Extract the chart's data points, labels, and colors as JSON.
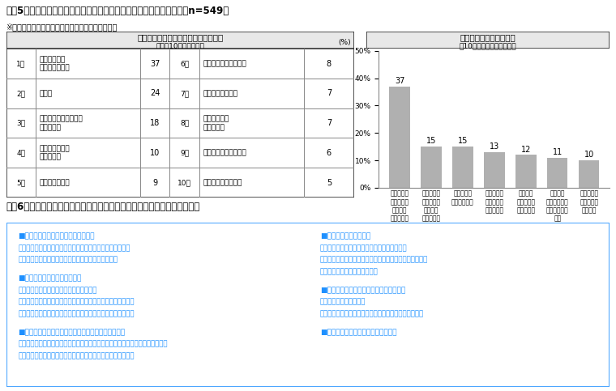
{
  "title_fig5": "＜図5＞コロナ禍の生活中に購入した調理家電と理由（複数回答）　（n=549）",
  "subtitle_fig5": "※コロナ禍の生活中に調理家電を購入した人ベース",
  "table_title": "コロナ禍の生活中に購入した調理家電",
  "table_subtitle": "（上位10項目を抜粋）",
  "table_data": [
    {
      "rank": "1位",
      "item": "電子レンジ・\nオーブンレンジ",
      "value": 37,
      "rank2": "6位",
      "item2": "ホットサンドメーカー",
      "value2": 8
    },
    {
      "rank": "2位",
      "item": "炊飯器",
      "value": 24,
      "rank2": "7位",
      "item2": "コーヒーメーカー",
      "value2": 7
    },
    {
      "rank": "3位",
      "item": "オーブントースター・\nトースター",
      "value": 18,
      "rank2": "8位",
      "item2": "自動調理鍋・\n電気圧力鍋",
      "value2": 7
    },
    {
      "rank": "4位",
      "item": "ジャーポット・\n電気ケトル",
      "value": 10,
      "rank2": "9位",
      "item2": "ジューサー・ミキサー",
      "value2": 6
    },
    {
      "rank": "5位",
      "item": "ホットプレート",
      "value": 9,
      "rank2": "10位",
      "item2": "フードプロセッサー",
      "value2": 5
    }
  ],
  "chart_title": "調理家電を購入した理由",
  "chart_subtitle": "（10％以上の項目を抜粋）",
  "bar_values": [
    37,
    15,
    15,
    13,
    12,
    11,
    10
  ],
  "bar_labels": [
    "家電が壊れ\nた・買い替\nえが必要\nだったから",
    "機能性・性\n能のよい家\n電が欲し\nかったから",
    "料理をラク\nにしたいから",
    "家でも美味\nしい食事を\nしたいから",
    "健康的な\n食生活を送\nりたいから",
    "日々の生\n活をグレード\nアップしたい\nから",
    "料理するこ\nとを楽しみ\nたいから"
  ],
  "bar_color": "#b0b0b0",
  "ylim": [
    0,
    50
  ],
  "yticks": [
    0,
    10,
    20,
    30,
    40,
    50
  ],
  "title_fig6": "＜図6＞コロナ禍の食生活でやってみてよかったこと（自由回答一部抜粋）",
  "fig6_left": [
    {
      "header": "■まとめ買い／ストックで食費節約へ",
      "lines": [
        "・作り置きをする、まとめ買いしてお肉をタレに漬けて冷凍",
        "・冷凍食品、レトルト商品の活用（美味しい、時短）"
      ]
    },
    {
      "header": "■料理のレパートリーが増えた",
      "lines": [
        "・レシピアプリ、料理番組から情報を得る",
        "・手間のかかる料理を作る（出汁をとる、お菓子、燻製など）",
        "・エスニック、メキシカン料理にチャレンジ、香辛料が増えた"
      ]
    },
    {
      "header": "■健康／免疫カアップのための食事で体調がよくなる",
      "lines": [
        "・乳酸菌（納豆、ヨーグルト、米麹）、ビタミン、水溶性食物繊維、たんぱく質",
        "・緑茶、スムージー、はちみつ、ニンニク、オートミールなど"
      ]
    }
  ],
  "fig6_right": [
    {
      "header": "■調理用品を購入し活用",
      "lines": [
        "・電気調理鍋（時短、レパートリーが増える）",
        "・ヨーグルトメーカー（楽しい、いろんなものが作れる）",
        "・高級トースター（美味しい）"
      ]
    },
    {
      "header": "■テイクアウト、デリバリー、中食の増加",
      "lines": [
        "・高級スイーツ、お惣菜",
        "・いろいろなお店のテイクアウト、デリバリーを楽しむ"
      ]
    },
    {
      "header": "■お取り寄せグルメ、高級食材の購入",
      "lines": []
    }
  ],
  "text_color_blue": "#1e90ff",
  "bg_color": "#ffffff",
  "border_color_fig6": "#4da6ff"
}
